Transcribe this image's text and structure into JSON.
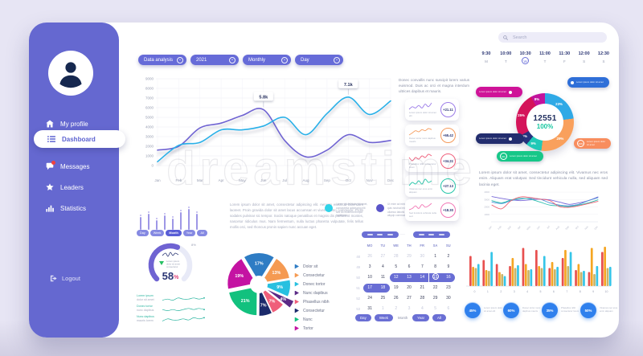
{
  "watermark": {
    "text": "dreamstime"
  },
  "sidebar": {
    "logout": "Logout",
    "items": [
      {
        "label": "My profile",
        "icon": "home",
        "active": false,
        "badge": false
      },
      {
        "label": "Dashboard",
        "icon": "dashboard",
        "active": true,
        "badge": false
      },
      {
        "label": "Messages",
        "icon": "messages",
        "active": false,
        "badge": true
      },
      {
        "label": "Leaders",
        "icon": "star",
        "active": false,
        "badge": false
      },
      {
        "label": "Statistics",
        "icon": "stats",
        "active": false,
        "badge": false
      }
    ]
  },
  "filters": [
    {
      "label": "Data analysis"
    },
    {
      "label": "2021"
    },
    {
      "label": "Monthly"
    },
    {
      "label": "Day"
    }
  ],
  "search": {
    "placeholder": "Search"
  },
  "schedule": [
    {
      "time": "9:30",
      "day": "M",
      "selected": false
    },
    {
      "time": "10:00",
      "day": "T",
      "selected": false
    },
    {
      "time": "10:30",
      "day": "W",
      "selected": true
    },
    {
      "time": "11:00",
      "day": "T",
      "selected": false
    },
    {
      "time": "11:30",
      "day": "F",
      "selected": false
    },
    {
      "time": "12:00",
      "day": "S",
      "selected": false
    },
    {
      "time": "12:30",
      "day": "S",
      "selected": false
    }
  ],
  "texts": {
    "column_paragraph": "Donec convallis nunc suscipit lorem varius euismod. Duis ac orci et magna interdum ultrices dapibus et mauris.",
    "mid_paragraph": "Lorem ipsum dolor sit amet, consectetur adipiscing elit. Aenean euismod bibendum laoreet. Proin gravida dolor sit amet lacus accumsan et viverra justo commodo. Proin sodales pulvinar sic tempor. Sociis natoque penatibus et magnis dis parturient montes, nascetur ridiculus mus. Nam fermentum, nulla luctus pharetra vulputate, felis tellus mollis orci, sed rhoncus pronin sapien nunc accuan eget.",
    "right_paragraph": "Lorem ipsum dolor sit amet, consectetur adipiscing elit. Vivamus nec eros enim. Aliquam erat volutpat. Sed tincidunt vehicula nulla, sed aliquam sed lacinia eget."
  },
  "legend_entries": [
    {
      "color": "#2fd3e8",
      "text": "Lorem ipsum dolor sit amet, consectetur adipiscing elit sed do eiusmod tempor incididunt."
    },
    {
      "color": "#5a55c9",
      "text": "Ut enim ad minim veniam, quis nostrud exercitation ullamco laboris nisi ut aliquip commodo."
    }
  ],
  "stat_cards": [
    {
      "value": "+21.11",
      "color": "#9b7be8",
      "caption": "Lorem ipsum dolor sit amet elit",
      "spark": [
        4,
        6,
        5,
        7,
        5,
        8,
        6,
        9
      ]
    },
    {
      "value": "+65.42",
      "color": "#f59a5b",
      "caption": "Donec tortor nunc dapibus mauris",
      "spark": [
        3,
        5,
        7,
        6,
        8,
        7,
        9,
        8
      ]
    },
    {
      "value": "+34.21",
      "color": "#ef5e7a",
      "caption": "Phasellus nibh consectetur lorem",
      "spark": [
        6,
        4,
        6,
        5,
        7,
        6,
        8,
        7
      ]
    },
    {
      "value": "+27.13",
      "color": "#26c6a9",
      "caption": "Vivamus nec eros enim aliquam",
      "spark": [
        5,
        7,
        6,
        8,
        6,
        9,
        7,
        8
      ]
    },
    {
      "value": "+18.30",
      "color": "#f277b5",
      "caption": "Sed tincidunt vehicula nulla sed",
      "spark": [
        4,
        5,
        7,
        5,
        8,
        6,
        7,
        9
      ]
    }
  ],
  "candles": [
    16,
    20,
    12,
    18,
    14,
    22,
    26,
    20
  ],
  "kpis": [
    {
      "value": "45%",
      "caption": "Lorem ipsum dolor sit amet elit"
    },
    {
      "value": "60%",
      "caption": "Donec tortor nunc dapibus mauris"
    },
    {
      "value": "35%",
      "caption": "Phasellus nibh consectetur lorem"
    },
    {
      "value": "50%",
      "caption": "Vivamus nec eros enim aliquam"
    }
  ],
  "calendar": {
    "weekdays": [
      "MO",
      "TU",
      "WE",
      "TH",
      "FR",
      "SA",
      "SU"
    ],
    "rows": [
      {
        "week": 48,
        "days": [
          {
            "d": 26,
            "m": 1
          },
          {
            "d": 27,
            "m": 1
          },
          {
            "d": 28,
            "m": 1
          },
          {
            "d": 29,
            "m": 1
          },
          {
            "d": 30,
            "m": 1
          },
          {
            "d": 1
          },
          {
            "d": 2
          }
        ]
      },
      {
        "week": 49,
        "days": [
          {
            "d": 3
          },
          {
            "d": 4
          },
          {
            "d": 5
          },
          {
            "d": 6
          },
          {
            "d": 7
          },
          {
            "d": 8
          },
          {
            "d": 9
          }
        ]
      },
      {
        "week": 50,
        "days": [
          {
            "d": 10
          },
          {
            "d": 11
          },
          {
            "d": 12,
            "r": "s"
          },
          {
            "d": 13,
            "r": "m"
          },
          {
            "d": 14,
            "r": "m"
          },
          {
            "d": 15,
            "r": "m",
            "t": 1
          },
          {
            "d": 16,
            "r": "e"
          }
        ]
      },
      {
        "week": 51,
        "days": [
          {
            "d": 17,
            "r": "s"
          },
          {
            "d": 18,
            "r": "e"
          },
          {
            "d": 19
          },
          {
            "d": 20
          },
          {
            "d": 21
          },
          {
            "d": 22
          },
          {
            "d": 23
          }
        ]
      },
      {
        "week": 52,
        "days": [
          {
            "d": 24
          },
          {
            "d": 25
          },
          {
            "d": 26
          },
          {
            "d": 27
          },
          {
            "d": 28
          },
          {
            "d": 29
          },
          {
            "d": 30
          }
        ]
      },
      {
        "week": 53,
        "days": [
          {
            "d": 31
          },
          {
            "d": 1,
            "m": 1
          },
          {
            "d": 2,
            "m": 1
          },
          {
            "d": 3,
            "m": 1
          },
          {
            "d": 4,
            "m": 1
          },
          {
            "d": 5,
            "m": 1
          },
          {
            "d": 6,
            "m": 1
          }
        ]
      }
    ],
    "buttons": [
      {
        "label": "Day",
        "style": "pill"
      },
      {
        "label": "Week",
        "style": "pill"
      },
      {
        "label": "Month",
        "style": "text"
      },
      {
        "label": "Year",
        "style": "pill"
      },
      {
        "label": "All",
        "style": "pill"
      }
    ]
  },
  "gauge": {
    "tabs": [
      "Day",
      "Week",
      "Month",
      "Year",
      "All"
    ],
    "active_tab": 2,
    "value": 58,
    "value_label": "58",
    "unit": "%",
    "secondary": "8%",
    "caption": [
      "Lorem ipsum",
      "dolor sit amet",
      "consectetur"
    ],
    "rows": [
      {
        "title": "Lorem ipsum",
        "sub": "dolor sit amet",
        "spark": [
          5,
          6,
          5,
          7,
          6,
          6,
          7,
          6,
          7
        ]
      },
      {
        "title": "Donec tortor",
        "sub": "nunc dapibus",
        "spark": [
          6,
          5,
          6,
          5,
          6,
          7,
          6,
          7,
          6
        ]
      },
      {
        "title": "Nunc dapibus",
        "sub": "mauris lorem",
        "spark": [
          5,
          7,
          6,
          6,
          7,
          6,
          8,
          7,
          8
        ]
      }
    ]
  },
  "chart_data": [
    {
      "id": "traffic-line",
      "type": "line",
      "categories": [
        "Jan",
        "Feb",
        "Mar",
        "Apr",
        "May",
        "Jun",
        "Jul",
        "Aug",
        "Sep",
        "Oct",
        "Nov",
        "Dec"
      ],
      "ylim": [
        0,
        9000
      ],
      "yticks": [
        0,
        1000,
        2000,
        3000,
        4000,
        5000,
        6000,
        7000,
        8000,
        9000
      ],
      "series": [
        {
          "name": "purple",
          "color": "#6f63d2",
          "values": [
            1600,
            2000,
            3900,
            4400,
            5200,
            5800,
            2600,
            900,
            1600,
            3200,
            2400,
            2600
          ]
        },
        {
          "name": "cyan",
          "color": "#29b0e8",
          "values": [
            400,
            2100,
            2400,
            3700,
            3700,
            4100,
            5000,
            3200,
            5400,
            7100,
            5300,
            6700
          ]
        }
      ],
      "annotations": [
        {
          "text": "5.8k",
          "series": 0,
          "index": 5
        },
        {
          "text": "7.1k",
          "series": 1,
          "index": 9
        }
      ]
    },
    {
      "id": "allocation-donut",
      "type": "pie",
      "total_label": "12551",
      "total_percent": "100%",
      "slices": [
        {
          "label": "23%",
          "value": 23,
          "color": "#2fa9e6"
        },
        {
          "label": "29%",
          "value": 29,
          "color": "#f9a05c"
        },
        {
          "label": "9%",
          "value": 9,
          "color": "#20c9b7"
        },
        {
          "label": "6%",
          "value": 6,
          "color": "#27337e"
        },
        {
          "label": "25%",
          "value": 25,
          "color": "#d4145a"
        },
        {
          "label": "8%",
          "value": 8,
          "color": "#c2139c"
        }
      ],
      "callouts": [
        {
          "pos": "top-left",
          "color": "#cf1398",
          "text": "Lorem ipsum dolor sit amet"
        },
        {
          "pos": "top-right",
          "color": "#2f6fd8",
          "text": "Lorem ipsum dolor sit amet"
        },
        {
          "pos": "right",
          "color": "#f88d5e",
          "text": "Lorem ipsum dolor sit amet",
          "badge": "29%"
        },
        {
          "pos": "bottom-left",
          "color": "#222d6e",
          "text": "Lorem ipsum dolor sit amet"
        },
        {
          "pos": "bottom",
          "color": "#17c788",
          "text": "Lorem ipsum dolor sit amet",
          "badge": "9%"
        }
      ]
    },
    {
      "id": "category-pie",
      "type": "pie",
      "slices": [
        {
          "label": "17%",
          "value": 17,
          "color": "#2e7cc4",
          "legend": "Dolor sit"
        },
        {
          "label": "13%",
          "value": 13,
          "color": "#f59a52",
          "legend": "Consectetur"
        },
        {
          "label": "9%",
          "value": 9,
          "color": "#27c0e0",
          "legend": "Donec tortor"
        },
        {
          "label": "4%",
          "value": 4,
          "color": "#5b2a86",
          "legend": "Nunc dapibus",
          "exploded": true
        },
        {
          "label": "7%",
          "value": 7,
          "color": "#ef5e7a",
          "legend": "Phasellus nibh"
        },
        {
          "label": "7%",
          "value": 7,
          "color": "#1b2a6b",
          "legend": "Consectetur"
        },
        {
          "label": "21%",
          "value": 21,
          "color": "#12c17e",
          "legend": "Nunc"
        },
        {
          "label": "19%",
          "value": 19,
          "color": "#c413a2",
          "legend": "Tortor"
        }
      ]
    },
    {
      "id": "comparison-lines",
      "type": "line",
      "categories": [
        "Jan",
        "Feb",
        "Mar",
        "Apr",
        "May",
        "Jun",
        "Jul",
        "Aug",
        "Sep",
        "Oct",
        "Nov",
        "Dec"
      ],
      "ylim": [
        0,
        4000
      ],
      "yticks": [
        1000,
        2000,
        3000,
        4000
      ],
      "series": [
        {
          "name": "purple",
          "color": "#7868d8",
          "values": [
            3400,
            3150,
            2950,
            2850,
            2950,
            3050,
            2950,
            2650,
            2350,
            2550,
            2850,
            3350
          ]
        },
        {
          "name": "blue",
          "color": "#4f8fd8",
          "values": [
            2650,
            2450,
            2850,
            3050,
            3150,
            3050,
            2550,
            2250,
            2150,
            2350,
            2850,
            3250
          ]
        },
        {
          "name": "teal",
          "color": "#2bbfae",
          "values": [
            2850,
            2550,
            2950,
            3150,
            3050,
            2650,
            2250,
            2150,
            2050,
            2250,
            2550,
            2950
          ]
        },
        {
          "name": "red",
          "color": "#ef6073",
          "values": [
            2250,
            1750,
            2850,
            3350,
            3250,
            3050,
            2850,
            2050,
            1950,
            2150,
            2450,
            2750
          ]
        }
      ]
    },
    {
      "id": "grouped-bars",
      "type": "bar",
      "categories": [
        "0",
        "1",
        "2",
        "3",
        "4",
        "5",
        "6",
        "7",
        "8",
        "9",
        "10"
      ],
      "series": [
        {
          "name": "red",
          "color": "#e8504f",
          "values": [
            75,
            65,
            55,
            50,
            95,
            90,
            45,
            70,
            40,
            35,
            85
          ]
        },
        {
          "name": "orange",
          "color": "#f5a623",
          "values": [
            48,
            40,
            35,
            70,
            55,
            50,
            60,
            90,
            55,
            95,
            98
          ]
        },
        {
          "name": "tan",
          "color": "#c9b46a",
          "values": [
            45,
            38,
            30,
            45,
            40,
            45,
            42,
            50,
            35,
            30,
            45
          ]
        },
        {
          "name": "cyan",
          "color": "#35c5e8",
          "values": [
            55,
            85,
            25,
            52,
            42,
            75,
            48,
            85,
            38,
            50,
            48
          ]
        }
      ]
    }
  ]
}
